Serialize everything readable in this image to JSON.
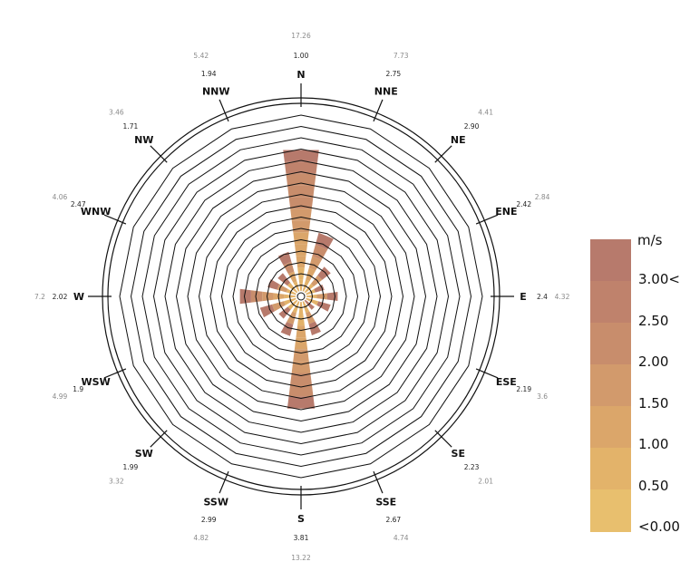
{
  "chart_data": {
    "type": "wind_rose",
    "directions": [
      "N",
      "NNE",
      "NE",
      "ENE",
      "E",
      "ESE",
      "SE",
      "SSE",
      "S",
      "SSW",
      "SW",
      "WSW",
      "W",
      "WNW",
      "NW",
      "NNW"
    ],
    "inner_values": [
      "1.00",
      "2.75",
      "2.90",
      "2.42",
      "2.4",
      "2.19",
      "2.23",
      "2.67",
      "3.81",
      "2.99",
      "1.99",
      "1.9",
      "2.02",
      "2.47",
      "1.71",
      "1.94"
    ],
    "outer_values": [
      "17.26",
      "7.73",
      "4.41",
      "2.84",
      "4.32",
      "3.6",
      "2.01",
      "4.74",
      "13.22",
      "4.82",
      "3.32",
      "4.99",
      "7.2",
      "4.06",
      "3.46",
      "5.42"
    ],
    "petal_lengths": [
      17.26,
      7.73,
      4.41,
      2.84,
      4.32,
      3.6,
      2.01,
      4.74,
      13.22,
      4.82,
      3.32,
      4.99,
      7.2,
      4.06,
      3.46,
      5.42
    ],
    "radial_max": 21,
    "ring_count": 16,
    "legend": {
      "title": "m/s",
      "labels": [
        "3.00<",
        "2.50",
        "2.00",
        "1.50",
        "1.00",
        "0.50",
        "<0.00"
      ],
      "colors": [
        "#b77a6c",
        "#bf826c",
        "#c88d6c",
        "#d29a6c",
        "#dba66a",
        "#e3b36a",
        "#e8bf6e"
      ]
    }
  }
}
